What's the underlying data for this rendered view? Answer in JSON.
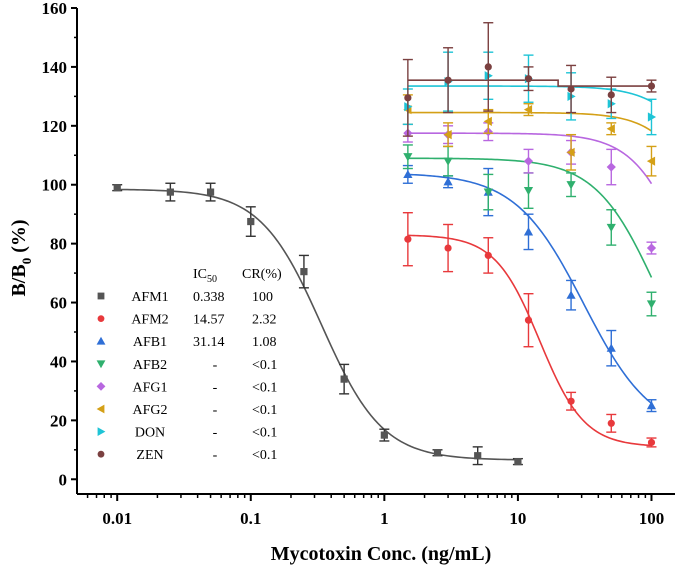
{
  "chart_data": {
    "type": "scatter",
    "xscale": "log",
    "xlim": [
      0.005,
      150
    ],
    "ylim": [
      -5,
      160
    ],
    "xlabel": "Mycotoxin Conc. (ng/mL)",
    "ylabel_parts": [
      "B/B",
      "0",
      " (%)"
    ],
    "xticks": [
      {
        "v": 0.01,
        "label": "0.01"
      },
      {
        "v": 0.1,
        "label": "0.1"
      },
      {
        "v": 1,
        "label": "1"
      },
      {
        "v": 10,
        "label": "10"
      },
      {
        "v": 100,
        "label": "100"
      }
    ],
    "yticks": [
      {
        "v": 0,
        "label": "0"
      },
      {
        "v": 20,
        "label": "20"
      },
      {
        "v": 40,
        "label": "40"
      },
      {
        "v": 60,
        "label": "60"
      },
      {
        "v": 80,
        "label": "80"
      },
      {
        "v": 100,
        "label": "100"
      },
      {
        "v": 120,
        "label": "120"
      },
      {
        "v": 140,
        "label": "140"
      },
      {
        "v": 160,
        "label": "160"
      }
    ],
    "legend": {
      "placement": "left-inside",
      "header_ic50": "IC",
      "header_ic50_sub": "50",
      "header_cr": "CR(%)"
    },
    "series": [
      {
        "name": "AFM1",
        "ic50": "0.338",
        "cr": "100",
        "color": "#555555",
        "marker": "square",
        "x": [
          0.01,
          0.025,
          0.05,
          0.1,
          0.25,
          0.5,
          1,
          2.5,
          5,
          10
        ],
        "y": [
          99,
          97.5,
          97.5,
          87.5,
          70.5,
          34,
          15,
          9,
          8,
          6
        ],
        "err": [
          1,
          3,
          3,
          5,
          5.5,
          5,
          2,
          1,
          3,
          1
        ],
        "fit": {
          "top": 98.5,
          "bottom": 6.5,
          "ic50": 0.338,
          "hill": 1.9,
          "xmin": 0.01,
          "xmax": 10
        }
      },
      {
        "name": "AFM2",
        "ic50": "14.57",
        "cr": "2.32",
        "color": "#e8393c",
        "marker": "circle",
        "x": [
          1.5,
          3,
          6,
          12,
          25,
          50,
          100
        ],
        "y": [
          81.5,
          78.5,
          76,
          54,
          26.5,
          19,
          12.5
        ],
        "err": [
          9,
          8,
          6,
          9,
          3,
          3,
          1.5
        ],
        "fit": {
          "top": 83,
          "bottom": 11,
          "ic50": 14.57,
          "hill": 2.6,
          "xmin": 1.5,
          "xmax": 100
        }
      },
      {
        "name": "AFB1",
        "ic50": "31.14",
        "cr": "1.08",
        "color": "#2f6fd6",
        "marker": "triangle-up",
        "x": [
          1.5,
          3,
          6,
          12,
          25,
          50,
          100
        ],
        "y": [
          103.5,
          101,
          97.5,
          84,
          62.5,
          44.5,
          25
        ],
        "err": [
          3,
          2,
          8,
          6,
          5,
          6,
          2
        ],
        "fit": {
          "top": 104,
          "bottom": 15,
          "ic50": 31.14,
          "hill": 1.7,
          "xmin": 1.5,
          "xmax": 100
        }
      },
      {
        "name": "AFB2",
        "ic50": "-",
        "cr": "<0.1",
        "color": "#2fb06e",
        "marker": "triangle-down",
        "x": [
          1.5,
          3,
          6,
          12,
          25,
          50,
          100
        ],
        "y": [
          109.5,
          108,
          97.5,
          98,
          100,
          85.5,
          59.5
        ],
        "err": [
          4,
          5,
          6,
          6,
          4,
          6,
          4
        ],
        "fit": {
          "top": 109,
          "bottom": 20,
          "ic50": 110,
          "hill": 1.9,
          "xmin": 1.5,
          "xmax": 100
        }
      },
      {
        "name": "AFG1",
        "ic50": "-",
        "cr": "<0.1",
        "color": "#b867e0",
        "marker": "diamond",
        "x": [
          1.5,
          3,
          6,
          12,
          25,
          50,
          100
        ],
        "y": [
          117.5,
          117,
          118,
          108,
          111,
          106,
          78.5
        ],
        "err": [
          3,
          3,
          3,
          4,
          4,
          6,
          2
        ],
        "fit": {
          "top": 117.5,
          "bottom": 30,
          "ic50": 190,
          "hill": 2.2,
          "xmin": 1.5,
          "xmax": 100
        }
      },
      {
        "name": "AFG2",
        "ic50": "-",
        "cr": "<0.1",
        "color": "#d4a017",
        "marker": "triangle-left",
        "x": [
          1.5,
          3,
          6,
          12,
          25,
          50,
          100
        ],
        "y": [
          125.5,
          117,
          121.5,
          125.5,
          111,
          119,
          108
        ],
        "err": [
          5,
          4,
          4,
          2,
          6,
          2,
          5
        ],
        "fit": {
          "top": 124.5,
          "bottom": 40,
          "ic50": 300,
          "hill": 2.3,
          "xmin": 1.5,
          "xmax": 100
        }
      },
      {
        "name": "DON",
        "ic50": "-",
        "cr": "<0.1",
        "color": "#1ec4d6",
        "marker": "triangle-right",
        "x": [
          1.5,
          3,
          6,
          12,
          25,
          50,
          100
        ],
        "y": [
          126.5,
          135,
          137,
          136,
          130,
          127.5,
          123
        ],
        "err": [
          6,
          10,
          8,
          8,
          8,
          5,
          6
        ],
        "fit": {
          "top": 133.5,
          "bottom": 60,
          "ic50": 320,
          "hill": 2.2,
          "xmin": 1.5,
          "xmax": 100
        }
      },
      {
        "name": "ZEN",
        "ic50": "-",
        "cr": "<0.1",
        "color": "#7b4040",
        "marker": "circle",
        "x": [
          1.5,
          3,
          6,
          12,
          25,
          50,
          100
        ],
        "y": [
          129.5,
          135.5,
          140,
          136,
          132.5,
          130.5,
          133.5
        ],
        "err": [
          13,
          11,
          15,
          4,
          8,
          6,
          2
        ],
        "fit": {
          "type": "step",
          "level1": 135.5,
          "level2": 133.5,
          "xstep": 20,
          "xmin": 1.5,
          "xmax": 100
        }
      }
    ]
  }
}
